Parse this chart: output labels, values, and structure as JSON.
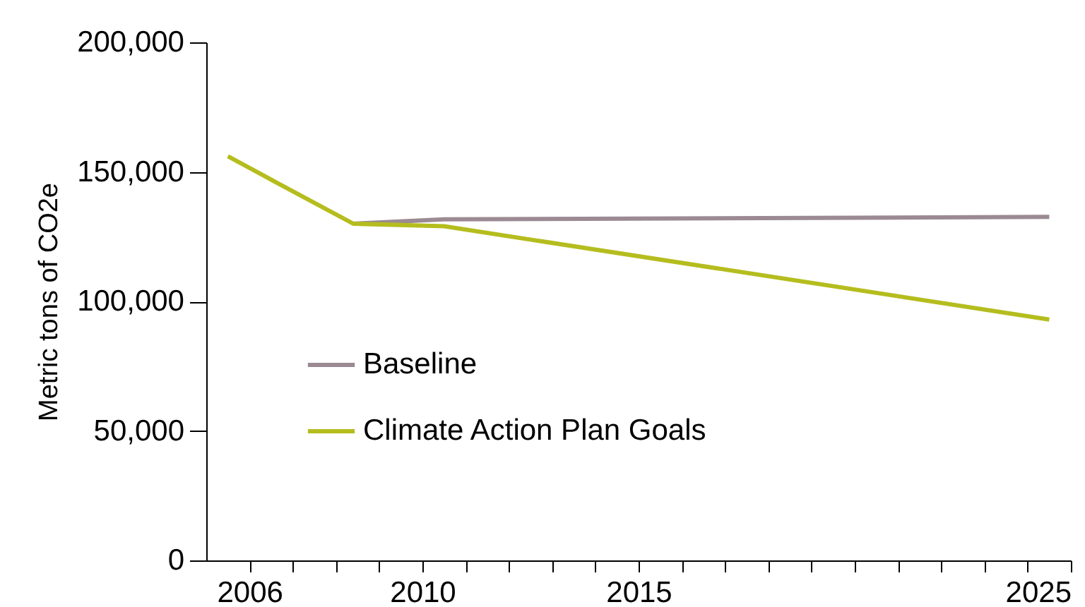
{
  "chart_data": {
    "type": "line",
    "ylabel": "Metric tons of CO2e",
    "xlim": [
      2005,
      2025
    ],
    "ylim": [
      0,
      200000
    ],
    "xticks": [
      2006,
      {
        "value": 2007,
        "label": null
      },
      {
        "value": 2008,
        "label": null
      },
      {
        "value": 2009,
        "label": null
      },
      2010,
      {
        "value": 2011,
        "label": null
      },
      {
        "value": 2012,
        "label": null
      },
      {
        "value": 2013,
        "label": null
      },
      {
        "value": 2014,
        "label": null
      },
      2015,
      {
        "value": 2016,
        "label": null
      },
      {
        "value": 2017,
        "label": null
      },
      {
        "value": 2018,
        "label": null
      },
      {
        "value": 2019,
        "label": null
      },
      {
        "value": 2020,
        "label": null
      },
      {
        "value": 2021,
        "label": null
      },
      {
        "value": 2022,
        "label": null
      },
      {
        "value": 2023,
        "label": null
      },
      {
        "value": 2024,
        "label": null
      },
      2025
    ],
    "yticks": [
      0,
      {
        "value": 50000,
        "label": "50,000"
      },
      {
        "value": 100000,
        "label": "100,000"
      },
      {
        "value": 150000,
        "label": "150,000"
      },
      {
        "value": 200000,
        "label": "200,000"
      }
    ],
    "grid": false,
    "legend": "left",
    "marker": "none",
    "line_style": "solid",
    "series": [
      {
        "name": "Baseline",
        "color": "#9b8a93",
        "x": [
          2008.4,
          2010.5,
          2024.5
        ],
        "values": [
          130000,
          131700,
          132600
        ]
      },
      {
        "name": "Climate Action Plan Goals",
        "color": "#b5bd1e",
        "x": [
          2005.5,
          2006.5,
          2008.4,
          2010.5,
          2024.5
        ],
        "values": [
          156000,
          147000,
          130000,
          129000,
          93000
        ]
      }
    ]
  }
}
